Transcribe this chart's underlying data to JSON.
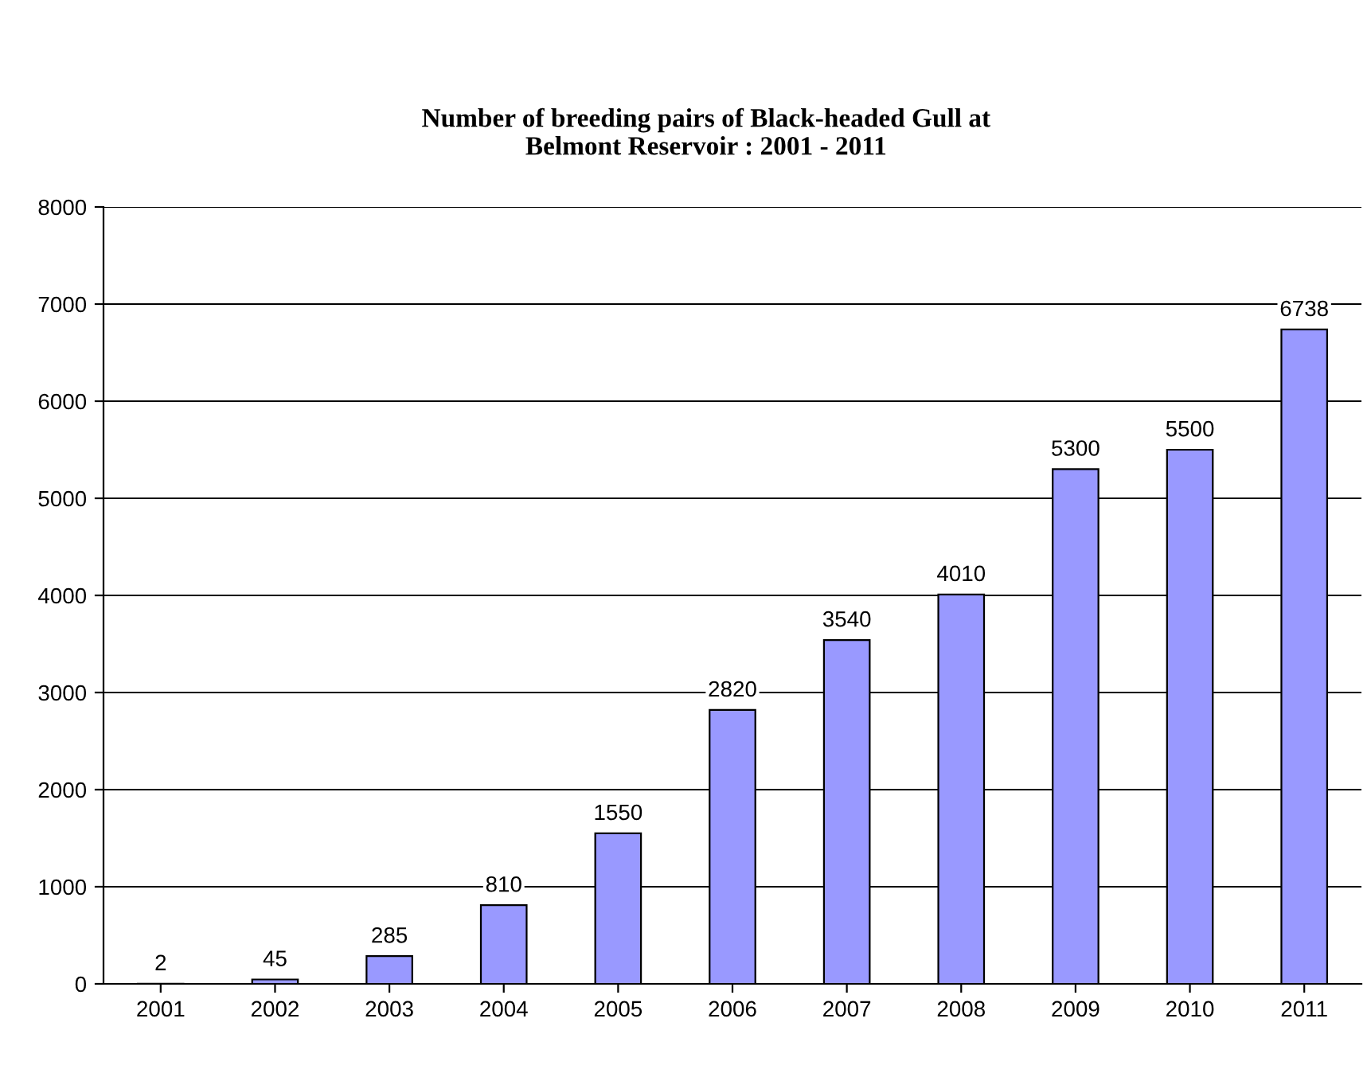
{
  "chart_data": {
    "type": "bar",
    "title": "Number of breeding pairs of Black-headed Gull at\nBelmont Reservoir : 2001 - 2011",
    "categories": [
      "2001",
      "2002",
      "2003",
      "2004",
      "2005",
      "2006",
      "2007",
      "2008",
      "2009",
      "2010",
      "2011"
    ],
    "values": [
      2,
      45,
      285,
      810,
      1550,
      2820,
      3540,
      4010,
      5300,
      5500,
      6738
    ],
    "color": "#9999ff",
    "ylim": [
      0,
      8000
    ],
    "yticks": [
      0,
      1000,
      2000,
      3000,
      4000,
      5000,
      6000,
      7000,
      8000
    ],
    "grid": "y",
    "data_labels": true,
    "legend": false
  }
}
